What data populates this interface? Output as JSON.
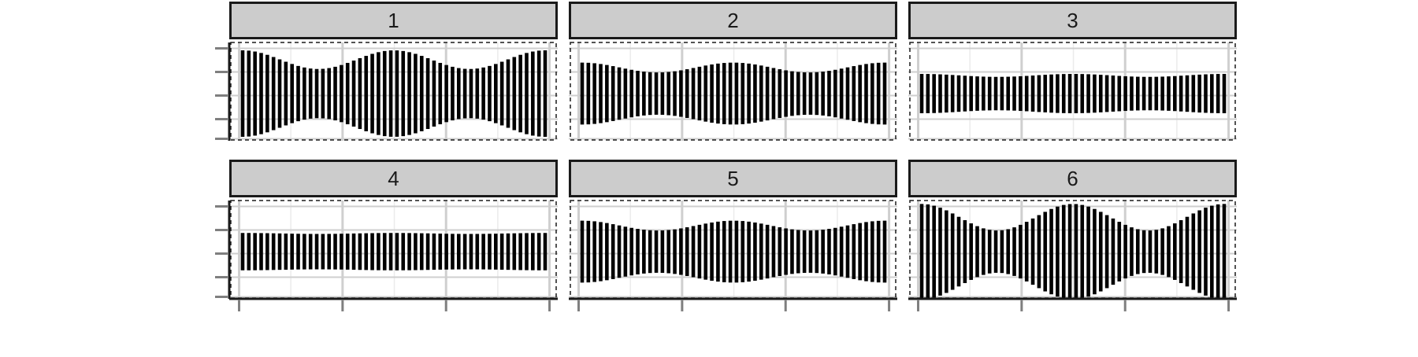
{
  "chart_data": {
    "type": "bar",
    "description_free": true,
    "xlabel": "",
    "ylabel": "",
    "grid": true,
    "legend": "none",
    "bars_per_panel": 50,
    "x_range": [
      0,
      1
    ],
    "y_range": [
      -1,
      1
    ],
    "panels": [
      {
        "label": "1",
        "base_half_height": 0.69,
        "amplitude": 0.19,
        "cycles": 2
      },
      {
        "label": "2",
        "base_half_height": 0.53,
        "amplitude": 0.1,
        "cycles": 2
      },
      {
        "label": "3",
        "base_half_height": 0.37,
        "amplitude": 0.03,
        "cycles": 2
      },
      {
        "label": "4",
        "base_half_height": 0.37,
        "amplitude": 0.01,
        "cycles": 2
      },
      {
        "label": "5",
        "base_half_height": 0.53,
        "amplitude": 0.1,
        "cycles": 2
      },
      {
        "label": "6",
        "base_half_height": 0.7,
        "amplitude": 0.27,
        "cycles": 2
      }
    ]
  },
  "colors": {
    "strip_fill": "#cccccc",
    "strip_border": "#1a1a1a",
    "bar": "#000000",
    "grid_major": "#cfcfcf",
    "grid_minor": "#ebebeb",
    "axis_tick": "#7f7f7f",
    "panel_dash": "#1a1a1a"
  }
}
